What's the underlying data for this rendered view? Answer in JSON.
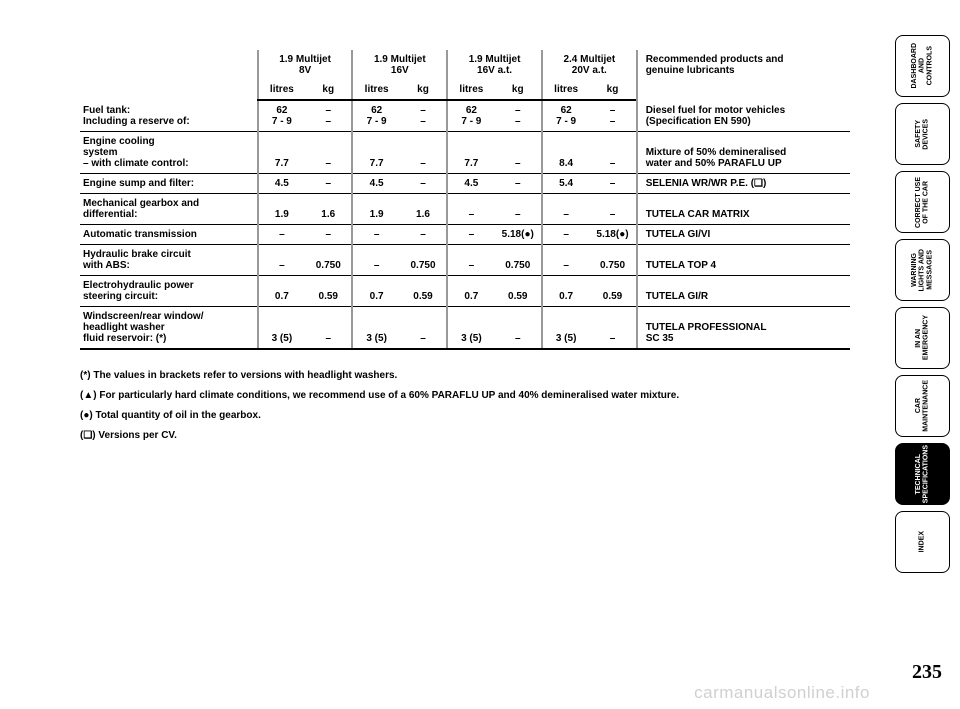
{
  "engines": [
    {
      "name": "1.9 Multijet\n8V"
    },
    {
      "name": "1.9 Multijet\n16V"
    },
    {
      "name": "1.9 Multijet\n16V a.t."
    },
    {
      "name": "2.4 Multijet\n20V a.t."
    }
  ],
  "unit_headers": {
    "litres": "litres",
    "kg": "kg"
  },
  "reco_header": "Recommended products and\ngenuine lubricants",
  "rows": [
    {
      "label": "Fuel tank:\nIncluding a reserve of:",
      "cols": [
        {
          "lit": "62\n7 - 9",
          "kg": "–\n–"
        },
        {
          "lit": "62\n7 - 9",
          "kg": "–\n–"
        },
        {
          "lit": "62\n7 - 9",
          "kg": "–\n–"
        },
        {
          "lit": "62\n7 - 9",
          "kg": "–\n–"
        }
      ],
      "reco": "Diesel fuel for motor vehicles\n(Specification EN 590)"
    },
    {
      "label": "Engine cooling\nsystem\n– with climate control:",
      "cols": [
        {
          "lit": "7.7",
          "kg": "–"
        },
        {
          "lit": "7.7",
          "kg": "–"
        },
        {
          "lit": "7.7",
          "kg": "–"
        },
        {
          "lit": "8.4",
          "kg": "–"
        }
      ],
      "reco": "Mixture of 50% demineralised\nwater and 50% PARAFLU UP"
    },
    {
      "label": "Engine sump and filter:",
      "cols": [
        {
          "lit": "4.5",
          "kg": "–"
        },
        {
          "lit": "4.5",
          "kg": "–"
        },
        {
          "lit": "4.5",
          "kg": "–"
        },
        {
          "lit": "5.4",
          "kg": "–"
        }
      ],
      "reco": "SELENIA WR/WR P.E. (❏)"
    },
    {
      "label": "Mechanical gearbox and\ndifferential:",
      "cols": [
        {
          "lit": "1.9",
          "kg": "1.6"
        },
        {
          "lit": "1.9",
          "kg": "1.6"
        },
        {
          "lit": "–",
          "kg": "–"
        },
        {
          "lit": "–",
          "kg": "–"
        }
      ],
      "reco": "TUTELA CAR MATRIX"
    },
    {
      "label": "Automatic transmission",
      "cols": [
        {
          "lit": "–",
          "kg": "–"
        },
        {
          "lit": "–",
          "kg": "–"
        },
        {
          "lit": "–",
          "kg": "5.18(●)"
        },
        {
          "lit": "–",
          "kg": "5.18(●)"
        }
      ],
      "reco": "TUTELA GI/VI"
    },
    {
      "label": "Hydraulic brake circuit\nwith ABS:",
      "cols": [
        {
          "lit": "–",
          "kg": "0.750"
        },
        {
          "lit": "–",
          "kg": "0.750"
        },
        {
          "lit": "–",
          "kg": "0.750"
        },
        {
          "lit": "–",
          "kg": "0.750"
        }
      ],
      "reco": "TUTELA TOP 4"
    },
    {
      "label": "Electrohydraulic power\nsteering circuit:",
      "cols": [
        {
          "lit": "0.7",
          "kg": "0.59"
        },
        {
          "lit": "0.7",
          "kg": "0.59"
        },
        {
          "lit": "0.7",
          "kg": "0.59"
        },
        {
          "lit": "0.7",
          "kg": "0.59"
        }
      ],
      "reco": "TUTELA GI/R"
    },
    {
      "label": "Windscreen/rear window/\nheadlight washer\nfluid reservoir: (*)",
      "cols": [
        {
          "lit": "3 (5)",
          "kg": "–"
        },
        {
          "lit": "3 (5)",
          "kg": "–"
        },
        {
          "lit": "3 (5)",
          "kg": "–"
        },
        {
          "lit": "3 (5)",
          "kg": "–"
        }
      ],
      "reco": "TUTELA PROFESSIONAL\nSC 35"
    }
  ],
  "footnotes": [
    "(*)  The values in brackets refer to versions with headlight washers.",
    "(▲) For particularly hard climate conditions, we recommend use of a 60% PARAFLU UP and 40% demineralised water mixture.",
    "(●) Total quantity of oil in the gearbox.",
    "(❏) Versions per CV."
  ],
  "tabs": [
    {
      "label": "DASHBOARD\nAND CONTROLS",
      "active": false
    },
    {
      "label": "SAFETY\nDEVICES",
      "active": false
    },
    {
      "label": "CORRECT USE\nOF THE CAR",
      "active": false
    },
    {
      "label": "WARNING\nLIGHTS AND\nMESSAGES",
      "active": false
    },
    {
      "label": "IN AN\nEMERGENCY",
      "active": false
    },
    {
      "label": "CAR\nMAINTENANCE",
      "active": false
    },
    {
      "label": "TECHNICAL\nSPECIFICATIONS",
      "active": true
    },
    {
      "label": "INDEX",
      "active": false
    }
  ],
  "page_number": "235",
  "watermark": "carmanualsonline.info",
  "colors": {
    "text": "#000000",
    "separator": "#999999",
    "watermark": "#d0d0d0",
    "tab_active_bg": "#000000",
    "tab_active_fg": "#ffffff"
  }
}
